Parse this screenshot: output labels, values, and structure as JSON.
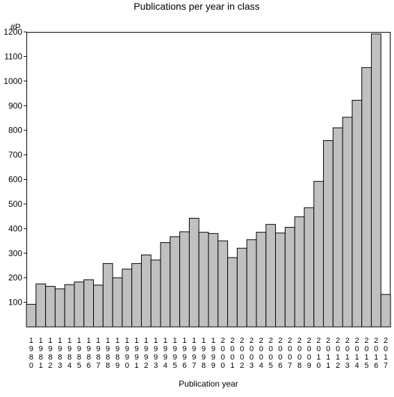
{
  "chart_data": {
    "type": "bar",
    "title": "Publications per year in class",
    "xlabel": "Publication year",
    "ylabel": "#P",
    "ylim": [
      0,
      1200
    ],
    "yticks": [
      100,
      200,
      300,
      400,
      500,
      600,
      700,
      800,
      900,
      1000,
      1100,
      1200
    ],
    "grid": false,
    "categories": [
      "1980",
      "1981",
      "1982",
      "1983",
      "1984",
      "1985",
      "1986",
      "1987",
      "1988",
      "1989",
      "1990",
      "1991",
      "1992",
      "1993",
      "1994",
      "1995",
      "1996",
      "1997",
      "1998",
      "1999",
      "2000",
      "2001",
      "2002",
      "2003",
      "2004",
      "2005",
      "2006",
      "2007",
      "2008",
      "2009",
      "2010",
      "2011",
      "2012",
      "2013",
      "2014",
      "2015",
      "2016",
      "2017"
    ],
    "values": [
      92,
      175,
      165,
      155,
      172,
      183,
      192,
      170,
      258,
      200,
      235,
      258,
      293,
      272,
      343,
      367,
      387,
      442,
      385,
      380,
      350,
      282,
      320,
      355,
      385,
      417,
      382,
      405,
      448,
      485,
      592,
      758,
      810,
      853,
      922,
      1055,
      1192,
      132
    ],
    "bar_color": "#c0c0c0",
    "bar_edge_color": "#000000"
  }
}
